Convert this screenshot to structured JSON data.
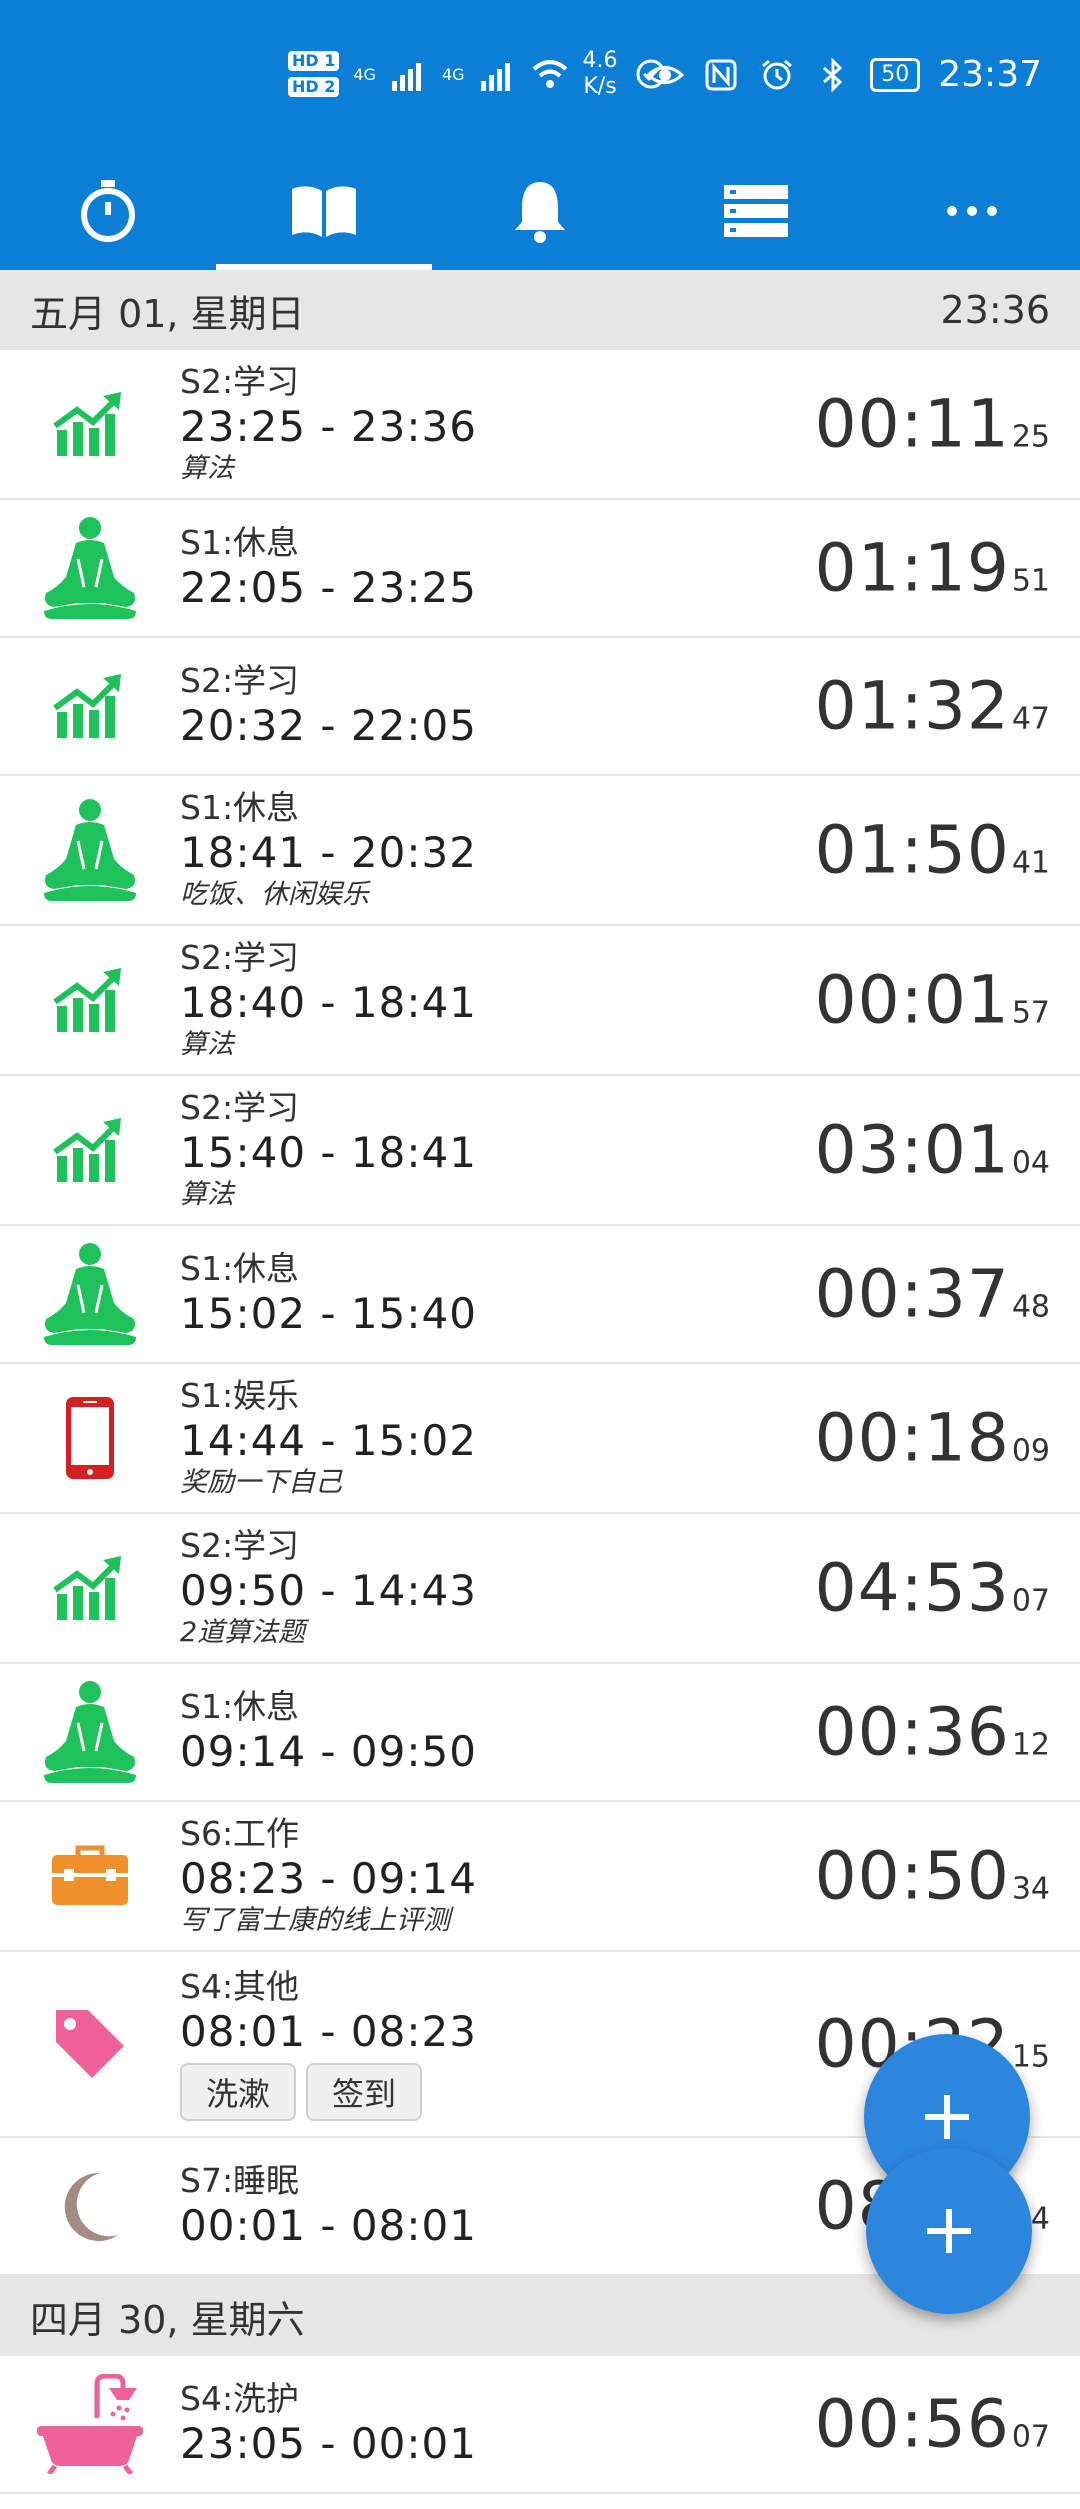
{
  "status": {
    "hd1": "HD 1",
    "hd2": "HD 2",
    "net1": "4G",
    "net2": "4G",
    "speed_value": "4.6",
    "speed_unit": "K/s",
    "battery": "50",
    "time": "23:37"
  },
  "tabs": [
    {
      "name": "stopwatch-icon",
      "active": false
    },
    {
      "name": "book-icon",
      "active": true
    },
    {
      "name": "bell-icon",
      "active": false
    },
    {
      "name": "list-icon",
      "active": false
    },
    {
      "name": "more-icon",
      "active": false
    }
  ],
  "days": [
    {
      "label": "五月 01, 星期日",
      "time": "23:36",
      "entries": [
        {
          "icon": "growth-chart-icon",
          "cat": "S2:学习",
          "range": "23:25 - 23:36",
          "note": "算法",
          "dur": "00:11",
          "sec": "25"
        },
        {
          "icon": "meditation-icon",
          "cat": "S1:休息",
          "range": "22:05 - 23:25",
          "note": "",
          "dur": "01:19",
          "sec": "51"
        },
        {
          "icon": "growth-chart-icon",
          "cat": "S2:学习",
          "range": "20:32 - 22:05",
          "note": "",
          "dur": "01:32",
          "sec": "47"
        },
        {
          "icon": "meditation-icon",
          "cat": "S1:休息",
          "range": "18:41 - 20:32",
          "note": "吃饭、休闲娱乐",
          "dur": "01:50",
          "sec": "41"
        },
        {
          "icon": "growth-chart-icon",
          "cat": "S2:学习",
          "range": "18:40 - 18:41",
          "note": "算法",
          "dur": "00:01",
          "sec": "57"
        },
        {
          "icon": "growth-chart-icon",
          "cat": "S2:学习",
          "range": "15:40 - 18:41",
          "note": "算法",
          "dur": "03:01",
          "sec": "04"
        },
        {
          "icon": "meditation-icon",
          "cat": "S1:休息",
          "range": "15:02 - 15:40",
          "note": "",
          "dur": "00:37",
          "sec": "48"
        },
        {
          "icon": "phone-icon",
          "cat": "S1:娱乐",
          "range": "14:44 - 15:02",
          "note": "奖励一下自己",
          "dur": "00:18",
          "sec": "09"
        },
        {
          "icon": "growth-chart-icon",
          "cat": "S2:学习",
          "range": "09:50 - 14:43",
          "note": "2道算法题",
          "dur": "04:53",
          "sec": "07"
        },
        {
          "icon": "meditation-icon",
          "cat": "S1:休息",
          "range": "09:14 - 09:50",
          "note": "",
          "dur": "00:36",
          "sec": "12"
        },
        {
          "icon": "toolbox-icon",
          "cat": "S6:工作",
          "range": "08:23 - 09:14",
          "note": "写了富士康的线上评测",
          "dur": "00:50",
          "sec": "34"
        },
        {
          "icon": "tag-icon",
          "cat": "S4:其他",
          "range": "08:01 - 08:23",
          "note": "",
          "chips": [
            "洗漱",
            "签到"
          ],
          "dur": "00:22",
          "sec": "15"
        },
        {
          "icon": "moon-icon",
          "cat": "S7:睡眠",
          "range": "00:01 - 08:01",
          "note": "",
          "dur": "08:00",
          "sec": "14"
        }
      ]
    },
    {
      "label": "四月 30, 星期六",
      "time": "",
      "entries": [
        {
          "icon": "bathtub-icon",
          "cat": "S4:洗护",
          "range": "23:05 - 00:01",
          "note": "",
          "dur": "00:56",
          "sec": "07"
        }
      ]
    }
  ],
  "colors": {
    "primary": "#0b7fd6",
    "fab": "#2c86de",
    "green": "#1fc15a",
    "red": "#d61f1f",
    "orange": "#f0902c",
    "pink": "#f0609a",
    "moon": "#a48a80"
  }
}
